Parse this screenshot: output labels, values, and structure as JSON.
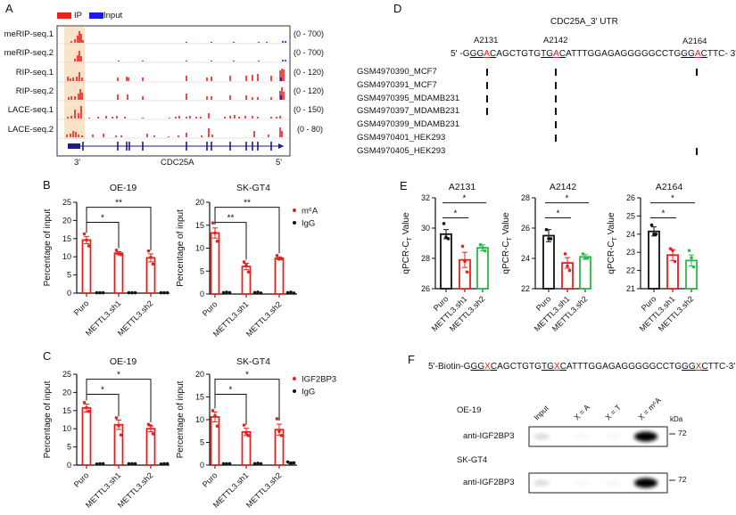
{
  "panel_labels": {
    "a": "A",
    "b": "B",
    "c": "C",
    "d": "D",
    "e": "E",
    "f": "F"
  },
  "colors": {
    "ip": "#e8211f",
    "input": "#1a1ae6",
    "highlight": "#fbe3c8",
    "gene": "#1b1b8c",
    "green": "#2db84a",
    "red": "#e8211f",
    "black": "#111111"
  },
  "panel_a": {
    "legend": [
      {
        "label": "IP",
        "color": "#e8211f"
      },
      {
        "label": "Input",
        "color": "#1a1ae6"
      }
    ],
    "tracks": [
      {
        "name": "meRIP-seq.1",
        "range": "(0 - 700)"
      },
      {
        "name": "meRIP-seq.2",
        "range": "(0 - 700)"
      },
      {
        "name": "RIP-seq.1",
        "range": "(0 - 120)"
      },
      {
        "name": "RIP-seq.2",
        "range": "(0 - 120)"
      },
      {
        "name": "LACE-seq.1",
        "range": "(0 - 150)"
      },
      {
        "name": "LACE-seq.2",
        "range": "(0 - 80)"
      }
    ],
    "gene": "CDC25A",
    "end_left": "3'",
    "end_right": "5'"
  },
  "panel_d": {
    "title": "CDC25A_3' UTR",
    "sites": [
      "A2131",
      "A2142",
      "A2164"
    ],
    "sequence": [
      {
        "t": "5' -G",
        "s": "plain"
      },
      {
        "t": "GG",
        "s": "u"
      },
      {
        "t": "A",
        "s": "m"
      },
      {
        "t": "C",
        "s": "u"
      },
      {
        "t": "AGCTGTG",
        "s": "plain"
      },
      {
        "t": "TG",
        "s": "u"
      },
      {
        "t": "A",
        "s": "m"
      },
      {
        "t": "C",
        "s": "u"
      },
      {
        "t": "ATTTGGAGAGGGGGCCTG",
        "s": "plain"
      },
      {
        "t": "GG",
        "s": "u"
      },
      {
        "t": "A",
        "s": "m"
      },
      {
        "t": "C",
        "s": "u"
      },
      {
        "t": "TTC- 3'",
        "s": "plain"
      }
    ],
    "samples": [
      {
        "name": "GSM4970390_MCF7",
        "hits": [
          true,
          true,
          true
        ]
      },
      {
        "name": "GSM4970391_MCF7",
        "hits": [
          true,
          true,
          false
        ]
      },
      {
        "name": "GSM4970395_MDAMB231",
        "hits": [
          true,
          true,
          false
        ]
      },
      {
        "name": "GSM4970397_MDAMB231",
        "hits": [
          true,
          true,
          false
        ]
      },
      {
        "name": "GSM4970399_MDAMB231",
        "hits": [
          false,
          true,
          false
        ]
      },
      {
        "name": "GSM4970401_HEK293",
        "hits": [
          false,
          true,
          false
        ]
      },
      {
        "name": "GSM4970405_HEK293",
        "hits": [
          false,
          false,
          true
        ]
      }
    ]
  },
  "panel_f": {
    "sequence": [
      {
        "t": "5'-Biotin-G",
        "s": "plain"
      },
      {
        "t": "GG",
        "s": "u"
      },
      {
        "t": "X",
        "s": "m"
      },
      {
        "t": "C",
        "s": "u"
      },
      {
        "t": "AGCTGTG",
        "s": "plain"
      },
      {
        "t": "TG",
        "s": "u"
      },
      {
        "t": "X",
        "s": "m"
      },
      {
        "t": "C",
        "s": "u"
      },
      {
        "t": "ATTTGGAGAGGGGGCCTG",
        "s": "plain"
      },
      {
        "t": "GG",
        "s": "u"
      },
      {
        "t": "X",
        "s": "m"
      },
      {
        "t": "C",
        "s": "u"
      },
      {
        "t": "TTC-3'",
        "s": "plain"
      }
    ],
    "lanes": [
      "Input",
      "X = A",
      "X = T",
      "X = m⁶A"
    ],
    "unit": "kDa",
    "blots": [
      {
        "cell_line": "OE-19",
        "antibody": "anti-IGF2BP3",
        "marker": "72",
        "band_intensity": [
          0.15,
          0.03,
          0.03,
          1.0
        ]
      },
      {
        "cell_line": "SK-GT4",
        "antibody": "anti-IGF2BP3",
        "marker": "72",
        "band_intensity": [
          0.15,
          0.03,
          0.04,
          1.0
        ]
      }
    ]
  },
  "chart_data": [
    {
      "type": "bar",
      "panel": "B",
      "title": "OE-19",
      "ylabel": "Percentage of input",
      "ylim": [
        0,
        25
      ],
      "yticks": [
        0,
        5,
        10,
        15,
        20,
        25
      ],
      "categories": [
        "Puro",
        "METTL3.sh1",
        "METTL3.sh2"
      ],
      "series": [
        {
          "name": "m⁶A",
          "color": "#e8211f",
          "values": [
            14.6,
            11.0,
            9.7
          ],
          "errors": [
            1.0,
            0.4,
            1.1
          ],
          "points": [
            [
              16.3,
              14.6,
              13.0
            ],
            [
              11.8,
              10.8,
              10.6
            ],
            [
              11.6,
              9.9,
              8.0
            ]
          ]
        },
        {
          "name": "IgG",
          "color": "#111111",
          "values": [
            0.1,
            0.1,
            0.1
          ],
          "errors": [
            0,
            0,
            0
          ],
          "points": [
            [
              0.1,
              0.1,
              0.1
            ],
            [
              0.1,
              0.1,
              0.1
            ],
            [
              0.1,
              0.1,
              0.1
            ]
          ]
        }
      ],
      "comparisons": [
        {
          "from": 0,
          "to": 1,
          "label": "*"
        },
        {
          "from": 0,
          "to": 2,
          "label": "**"
        }
      ],
      "legend": false
    },
    {
      "type": "bar",
      "panel": "B",
      "title": "SK-GT4",
      "ylabel": "Percentage of input",
      "ylim": [
        0,
        20
      ],
      "yticks": [
        0,
        5,
        10,
        15,
        20
      ],
      "categories": [
        "Puro",
        "METTL3.sh1",
        "METTL3.sh2"
      ],
      "series": [
        {
          "name": "m⁶A",
          "color": "#e8211f",
          "values": [
            13.3,
            6.0,
            7.8
          ],
          "errors": [
            1.1,
            0.7,
            0.3
          ],
          "points": [
            [
              15.5,
              13.3,
              11.5
            ],
            [
              7.0,
              6.3,
              4.8
            ],
            [
              8.4,
              7.6,
              7.7
            ]
          ]
        },
        {
          "name": "IgG",
          "color": "#111111",
          "values": [
            0.3,
            0.3,
            0.3
          ],
          "errors": [
            0,
            0,
            0
          ],
          "points": [
            [
              0.3,
              0.4,
              0.3
            ],
            [
              0.3,
              0.4,
              0.2
            ],
            [
              0.3,
              0.4,
              0.2
            ]
          ]
        }
      ],
      "comparisons": [
        {
          "from": 0,
          "to": 1,
          "label": "**"
        },
        {
          "from": 0,
          "to": 2,
          "label": "**"
        }
      ],
      "legend": true
    },
    {
      "type": "bar",
      "panel": "C",
      "title": "OE-19",
      "ylabel": "Percentage of input",
      "ylim": [
        0,
        25
      ],
      "yticks": [
        0,
        5,
        10,
        15,
        20,
        25
      ],
      "categories": [
        "Puro",
        "METTL3.sh1",
        "METTL3.sh2"
      ],
      "series": [
        {
          "name": "IGF2BP3",
          "color": "#e8211f",
          "values": [
            15.7,
            11.1,
            10.0
          ],
          "errors": [
            1.1,
            1.3,
            0.8
          ],
          "points": [
            [
              17.2,
              15.8,
              14.8
            ],
            [
              13.0,
              10.8,
              8.3
            ],
            [
              11.2,
              10.8,
              8.6
            ]
          ]
        },
        {
          "name": "IgG",
          "color": "#111111",
          "values": [
            0.4,
            0.4,
            0.4
          ],
          "errors": [
            0,
            0,
            0
          ],
          "points": [
            [
              0.3,
              0.4,
              0.4
            ],
            [
              0.4,
              0.4,
              0.4
            ],
            [
              0.3,
              0.4,
              0.4
            ]
          ]
        }
      ],
      "comparisons": [
        {
          "from": 0,
          "to": 1,
          "label": "*"
        },
        {
          "from": 0,
          "to": 2,
          "label": "*"
        }
      ],
      "legend": false
    },
    {
      "type": "bar",
      "panel": "C",
      "title": "SK-GT4",
      "ylabel": "Percentage of input",
      "ylim": [
        0,
        20
      ],
      "yticks": [
        0,
        5,
        10,
        15,
        20
      ],
      "categories": [
        "Puro",
        "METTL3.sh1",
        "METTL3.sh2"
      ],
      "series": [
        {
          "name": "IGF2BP3",
          "color": "#e8211f",
          "values": [
            10.6,
            7.3,
            7.8
          ],
          "errors": [
            1.1,
            0.8,
            1.2
          ],
          "points": [
            [
              12.0,
              10.9,
              8.6
            ],
            [
              8.8,
              7.0,
              6.5
            ],
            [
              10.2,
              7.4,
              6.5
            ]
          ]
        },
        {
          "name": "IgG",
          "color": "#111111",
          "values": [
            0.3,
            0.3,
            0.5
          ],
          "errors": [
            0,
            0,
            0.2
          ],
          "points": [
            [
              0.3,
              0.3,
              0.3
            ],
            [
              0.3,
              0.4,
              0.3
            ],
            [
              0.7,
              0.4,
              0.5
            ]
          ]
        }
      ],
      "comparisons": [
        {
          "from": 0,
          "to": 1,
          "label": "*"
        },
        {
          "from": 0,
          "to": 2,
          "label": "*"
        }
      ],
      "legend": true
    },
    {
      "type": "bar",
      "panel": "E",
      "title": "A2131",
      "ylabel": {
        "main": "qPCR-C",
        "sub": "T",
        "rest": " Value"
      },
      "ylim": [
        26,
        32
      ],
      "yticks": [
        26,
        28,
        30,
        32
      ],
      "categories": [
        "Puro",
        "METTL3.sh1",
        "METTL3.sh2"
      ],
      "series": [
        {
          "colors": [
            "#111111",
            "#e8211f",
            "#2db84a"
          ],
          "values": [
            29.6,
            27.9,
            28.7
          ],
          "errors": [
            0.3,
            0.5,
            0.2
          ],
          "points": [
            [
              30.3,
              29.4,
              29.3
            ],
            [
              28.8,
              27.8,
              27.1
            ],
            [
              28.9,
              28.7,
              28.5
            ]
          ]
        }
      ],
      "comparisons": [
        {
          "from": 0,
          "to": 1,
          "label": "*"
        },
        {
          "from": 0,
          "to": 2,
          "label": "*"
        }
      ],
      "legend": false
    },
    {
      "type": "bar",
      "panel": "E",
      "title": "A2142",
      "ylabel": {
        "main": "qPCR-C",
        "sub": "T",
        "rest": " Value"
      },
      "ylim": [
        22,
        28
      ],
      "yticks": [
        22,
        24,
        26,
        28
      ],
      "categories": [
        "Puro",
        "METTL3.sh1",
        "METTL3.sh2"
      ],
      "series": [
        {
          "colors": [
            "#111111",
            "#e8211f",
            "#2db84a"
          ],
          "values": [
            25.5,
            23.7,
            24.1
          ],
          "errors": [
            0.4,
            0.35,
            0.15
          ],
          "points": [
            [
              25.9,
              25.3,
              25.3
            ],
            [
              24.3,
              23.5,
              23.2
            ],
            [
              24.3,
              24.0,
              24.0
            ]
          ]
        }
      ],
      "comparisons": [
        {
          "from": 0,
          "to": 1,
          "label": "*"
        },
        {
          "from": 0,
          "to": 2,
          "label": "*"
        }
      ],
      "legend": false
    },
    {
      "type": "bar",
      "panel": "E",
      "title": "A2164",
      "ylabel": {
        "main": "qPCR-C",
        "sub": "T",
        "rest": " Value"
      },
      "ylim": [
        21,
        26
      ],
      "yticks": [
        21,
        22,
        23,
        24,
        25,
        26
      ],
      "categories": [
        "Puro",
        "METTL3.sh1",
        "METTL3.sh2"
      ],
      "series": [
        {
          "colors": [
            "#111111",
            "#e8211f",
            "#2db84a"
          ],
          "values": [
            24.15,
            22.85,
            22.55
          ],
          "errors": [
            0.25,
            0.3,
            0.3
          ],
          "points": [
            [
              24.5,
              24.0,
              24.0
            ],
            [
              23.2,
              23.1,
              22.5
            ],
            [
              23.1,
              22.7,
              22.2
            ]
          ]
        }
      ],
      "comparisons": [
        {
          "from": 0,
          "to": 1,
          "label": "*"
        },
        {
          "from": 0,
          "to": 2,
          "label": "*"
        }
      ],
      "legend": false
    }
  ]
}
